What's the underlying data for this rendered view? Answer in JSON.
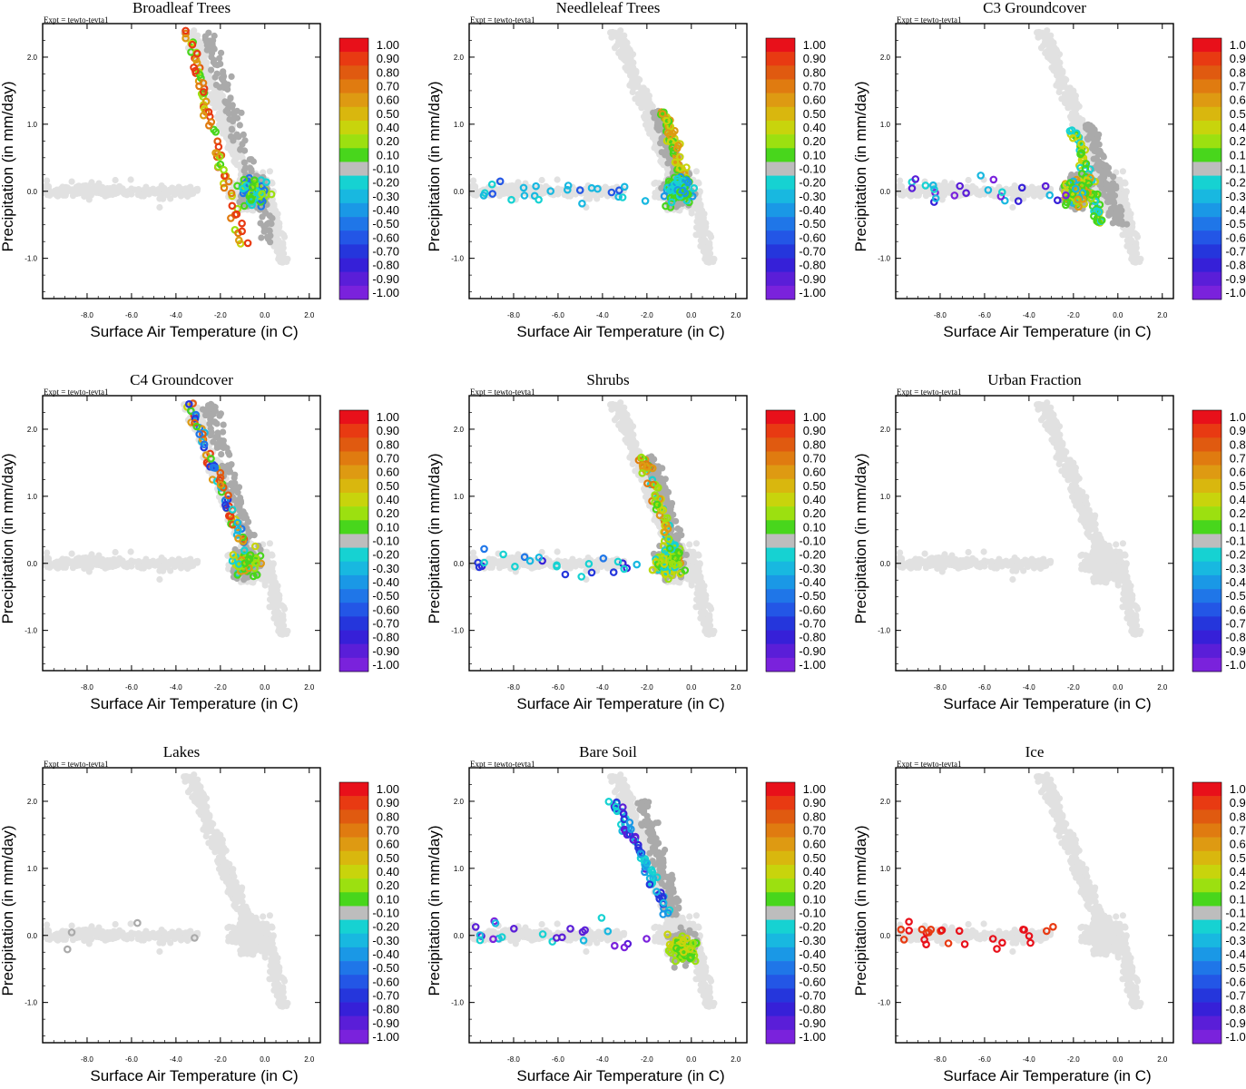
{
  "figure": {
    "expt_label": "Expt = tewto-tevta1",
    "xlabel": "Surface Air Temperature (in C)",
    "ylabel": "Precipitation (in mm/day)",
    "xticks": [
      "-8.0",
      "-6.0",
      "-4.0",
      "-2.0",
      "0.0",
      "2.0"
    ],
    "yticks": [
      "2.0",
      "1.0",
      "0.0",
      "-1.0"
    ],
    "colorbar_labels": [
      "1.00",
      "0.90",
      "0.80",
      "0.70",
      "0.60",
      "0.50",
      "0.40",
      "0.20",
      "0.10",
      "-0.10",
      "-0.20",
      "-0.30",
      "-0.40",
      "-0.50",
      "-0.60",
      "-0.70",
      "-0.80",
      "-0.90",
      "-1.00"
    ],
    "colorbar_colors": [
      "#e8101a",
      "#e83a12",
      "#e05a10",
      "#e07b10",
      "#de9a12",
      "#d9b70e",
      "#c8d40c",
      "#9ce010",
      "#48d61c",
      "#bdbdbd",
      "#16d2d2",
      "#18b8e0",
      "#1a98e6",
      "#1f76e8",
      "#2356e6",
      "#2536dc",
      "#3620d8",
      "#5a1ed8",
      "#7a22dc"
    ],
    "background_point_color": "#e1e1e1",
    "neutral_point_color": "#aaaaaa"
  },
  "chart_data": [
    {
      "type": "scatter",
      "title": "Broadleaf Trees",
      "xlabel": "Surface Air Temperature (in C)",
      "ylabel": "Precipitation (in mm/day)",
      "xlim": [
        -10,
        2.5
      ],
      "ylim": [
        -1.6,
        2.5
      ],
      "color_variable_range": [
        -1,
        1
      ],
      "clusters": {
        "vertical": {
          "tmin": -3.5,
          "tmax": -1.0,
          "pmin": -0.8,
          "pmax": 2.4,
          "colors": [
            "#e05a10",
            "#e07b10",
            "#48d61c",
            "#9ce010",
            "#c8d40c",
            "#e83a12",
            "#de9a12"
          ]
        },
        "core": {
          "tcenter": -0.5,
          "pcenter": 0.0,
          "colors": [
            "#48d61c",
            "#9ce010",
            "#16d2d2",
            "#1f76e8"
          ]
        },
        "left_tail": {
          "colors": []
        }
      }
    },
    {
      "type": "scatter",
      "title": "Needleleaf Trees",
      "xlabel": "Surface Air Temperature (in C)",
      "ylabel": "Precipitation (in mm/day)",
      "xlim": [
        -10,
        2.5
      ],
      "ylim": [
        -1.6,
        2.5
      ],
      "color_variable_range": [
        -1,
        1
      ],
      "clusters": {
        "vertical": {
          "tmin": -1.2,
          "tmax": -0.3,
          "pmin": 0.1,
          "pmax": 1.2,
          "colors": [
            "#c8d40c",
            "#de9a12",
            "#48d61c"
          ]
        },
        "core": {
          "tcenter": -0.6,
          "pcenter": 0.0,
          "colors": [
            "#16d2d2",
            "#1a98e6",
            "#48d61c"
          ]
        },
        "left_tail": {
          "colors": [
            "#16d2d2",
            "#18b8e0",
            "#2356e6"
          ]
        }
      }
    },
    {
      "type": "scatter",
      "title": "C3 Groundcover",
      "xlabel": "Surface Air Temperature (in C)",
      "ylabel": "Precipitation (in mm/day)",
      "xlim": [
        -10,
        2.5
      ],
      "ylim": [
        -1.6,
        2.5
      ],
      "color_variable_range": [
        -1,
        1
      ],
      "clusters": {
        "vertical": {
          "tmin": -2.0,
          "tmax": -0.8,
          "pmin": -0.5,
          "pmax": 1.0,
          "colors": [
            "#48d61c",
            "#c8d40c",
            "#16d2d2"
          ]
        },
        "core": {
          "tcenter": -1.8,
          "pcenter": 0.0,
          "colors": [
            "#48d61c",
            "#9ce010",
            "#c8d40c",
            "#de9a12",
            "#18b8e0"
          ]
        },
        "left_tail": {
          "colors": [
            "#5a1ed8",
            "#7a22dc",
            "#16d2d2",
            "#18b8e0",
            "#3620d8"
          ]
        }
      }
    },
    {
      "type": "scatter",
      "title": "C4 Groundcover",
      "xlabel": "Surface Air Temperature (in C)",
      "ylabel": "Precipitation (in mm/day)",
      "xlim": [
        -10,
        2.5
      ],
      "ylim": [
        -1.6,
        2.5
      ],
      "color_variable_range": [
        -1,
        1
      ],
      "clusters": {
        "vertical": {
          "tmin": -3.4,
          "tmax": -1.0,
          "pmin": 0.3,
          "pmax": 2.4,
          "colors": [
            "#2536dc",
            "#1f76e8",
            "#18b8e0",
            "#16d2d2",
            "#e83a12",
            "#e05a10",
            "#48d61c",
            "#c8d40c",
            "#de9a12"
          ]
        },
        "core": {
          "tcenter": -0.8,
          "pcenter": 0.0,
          "colors": [
            "#48d61c",
            "#9ce010",
            "#c8d40c",
            "#de9a12",
            "#16d2d2"
          ]
        },
        "left_tail": {
          "colors": []
        }
      }
    },
    {
      "type": "scatter",
      "title": "Shrubs",
      "xlabel": "Surface Air Temperature (in C)",
      "ylabel": "Precipitation (in mm/day)",
      "xlim": [
        -10,
        2.5
      ],
      "ylim": [
        -1.6,
        2.5
      ],
      "color_variable_range": [
        -1,
        1
      ],
      "clusters": {
        "vertical": {
          "tmin": -2.2,
          "tmax": -0.6,
          "pmin": 0.0,
          "pmax": 1.6,
          "colors": [
            "#c8d40c",
            "#de9a12",
            "#48d61c",
            "#9ce010",
            "#16d2d2",
            "#e07b10"
          ]
        },
        "core": {
          "tcenter": -1.0,
          "pcenter": 0.0,
          "colors": [
            "#48d61c",
            "#9ce010",
            "#c8d40c",
            "#16d2d2"
          ]
        },
        "left_tail": {
          "colors": [
            "#2536dc",
            "#1f76e8",
            "#16d2d2",
            "#18b8e0",
            "#3620d8"
          ]
        }
      }
    },
    {
      "type": "scatter",
      "title": "Urban Fraction",
      "xlabel": "Surface Air Temperature (in C)",
      "ylabel": "Precipitation (in mm/day)",
      "xlim": [
        -10,
        2.5
      ],
      "ylim": [
        -1.6,
        2.5
      ],
      "color_variable_range": [
        -1,
        1
      ],
      "clusters": {
        "vertical": {
          "tmin": 0,
          "tmax": 0,
          "pmin": 0,
          "pmax": 0,
          "colors": []
        },
        "core": {
          "tcenter": 0,
          "pcenter": 0,
          "colors": []
        },
        "left_tail": {
          "colors": []
        }
      }
    },
    {
      "type": "scatter",
      "title": "Lakes",
      "xlabel": "Surface Air Temperature (in C)",
      "ylabel": "Precipitation (in mm/day)",
      "xlim": [
        -10,
        2.5
      ],
      "ylim": [
        -1.6,
        2.5
      ],
      "color_variable_range": [
        -1,
        1
      ],
      "clusters": {
        "vertical": {
          "tmin": 0,
          "tmax": 0,
          "pmin": 0,
          "pmax": 0,
          "colors": []
        },
        "core": {
          "tcenter": 0,
          "pcenter": 0,
          "colors": []
        },
        "left_tail": {
          "colors": [
            "#aaaaaa"
          ]
        }
      }
    },
    {
      "type": "scatter",
      "title": "Bare Soil",
      "xlabel": "Surface Air Temperature (in C)",
      "ylabel": "Precipitation (in mm/day)",
      "xlim": [
        -10,
        2.5
      ],
      "ylim": [
        -1.6,
        2.5
      ],
      "color_variable_range": [
        -1,
        1
      ],
      "clusters": {
        "vertical": {
          "tmin": -3.5,
          "tmax": -1.0,
          "pmin": 0.3,
          "pmax": 2.0,
          "colors": [
            "#3620d8",
            "#2536dc",
            "#5a1ed8",
            "#16d2d2",
            "#18b8e0",
            "#1a98e6"
          ]
        },
        "core": {
          "tcenter": -0.4,
          "pcenter": -0.2,
          "colors": [
            "#48d61c",
            "#9ce010",
            "#c8d40c"
          ]
        },
        "left_tail": {
          "colors": [
            "#5a1ed8",
            "#16d2d2",
            "#18b8e0",
            "#7a22dc"
          ]
        }
      }
    },
    {
      "type": "scatter",
      "title": "Ice",
      "xlabel": "Surface Air Temperature (in C)",
      "ylabel": "Precipitation (in mm/day)",
      "xlim": [
        -10,
        2.5
      ],
      "ylim": [
        -1.6,
        2.5
      ],
      "color_variable_range": [
        -1,
        1
      ],
      "clusters": {
        "vertical": {
          "tmin": 0,
          "tmax": 0,
          "pmin": 0,
          "pmax": 0,
          "colors": []
        },
        "core": {
          "tcenter": 0,
          "pcenter": 0,
          "colors": []
        },
        "left_tail": {
          "colors": [
            "#e8101a",
            "#e83a12"
          ]
        }
      }
    }
  ]
}
